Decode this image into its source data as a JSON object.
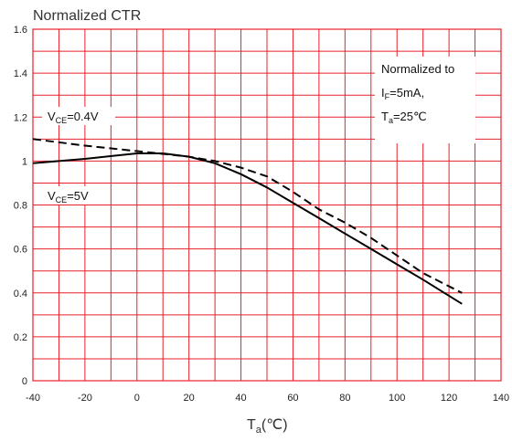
{
  "chart_data": {
    "type": "line",
    "title": "Normalized CTR",
    "xlabel": {
      "main": "T",
      "sub": "a",
      "unit": "(℃)"
    },
    "ylabel": "",
    "xlim": [
      -40,
      140
    ],
    "ylim": [
      0,
      1.6
    ],
    "x_ticks": [
      -40,
      -20,
      0,
      20,
      40,
      60,
      80,
      100,
      120,
      140
    ],
    "y_ticks": [
      0,
      0.2,
      0.4,
      0.6,
      0.8,
      1,
      1.2,
      1.4,
      1.6
    ],
    "y_tick_labels": [
      "0",
      "0.2",
      "0.4",
      "0.6",
      "0.8",
      "1",
      "1.2",
      "1.4",
      "1.6"
    ],
    "x_minor_step": 10,
    "y_minor_step": 0.1,
    "grid": true,
    "grid_color": "#e8202a",
    "series": [
      {
        "name_parts": {
          "main": "V",
          "sub": "CE",
          "rest": "=0.4V"
        },
        "style": "dashed",
        "x": [
          -40,
          -20,
          0,
          20,
          30,
          40,
          50,
          60,
          70,
          80,
          90,
          100,
          110,
          125
        ],
        "y": [
          1.1,
          1.07,
          1.045,
          1.02,
          1.0,
          0.97,
          0.93,
          0.86,
          0.78,
          0.72,
          0.65,
          0.57,
          0.49,
          0.4
        ]
      },
      {
        "name_parts": {
          "main": "V",
          "sub": "CE",
          "rest": "=5V"
        },
        "style": "solid",
        "x": [
          -40,
          -20,
          0,
          10,
          20,
          30,
          40,
          50,
          60,
          70,
          80,
          90,
          100,
          110,
          125
        ],
        "y": [
          0.99,
          1.01,
          1.035,
          1.035,
          1.02,
          0.99,
          0.94,
          0.88,
          0.81,
          0.74,
          0.67,
          0.6,
          0.53,
          0.46,
          0.35
        ]
      }
    ],
    "annotation": {
      "line1": "Normalized to",
      "line2": {
        "main": "I",
        "sub": "F",
        "rest": "=5mA,"
      },
      "line3": {
        "main": "T",
        "sub": "a",
        "rest": "=25℃"
      }
    }
  }
}
